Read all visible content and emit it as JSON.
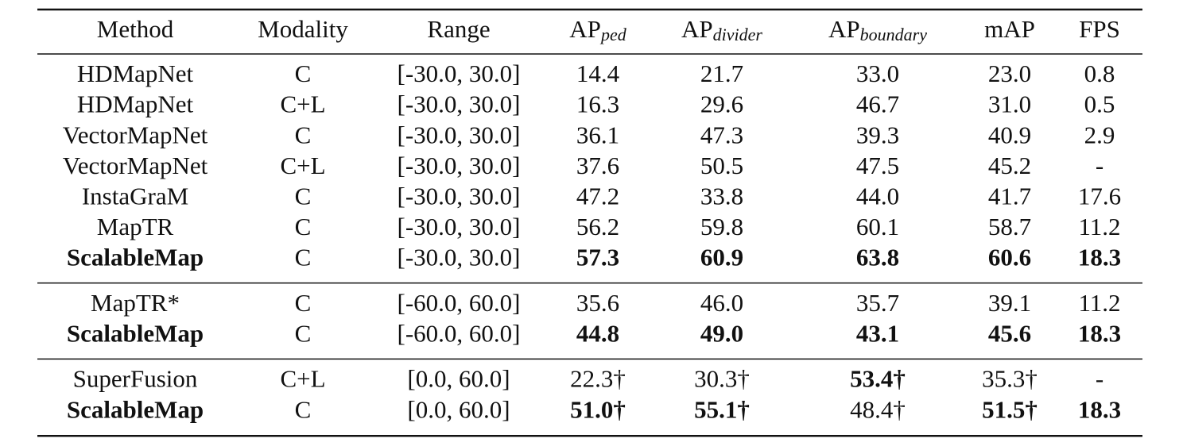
{
  "table": {
    "columns": [
      {
        "text": "Method"
      },
      {
        "text": "Modality"
      },
      {
        "text": "Range"
      },
      {
        "text": "AP",
        "sub": "ped"
      },
      {
        "text": "AP",
        "sub": "divider"
      },
      {
        "text": "AP",
        "sub": "boundary"
      },
      {
        "text": "mAP"
      },
      {
        "text": "FPS"
      }
    ],
    "groups": [
      [
        {
          "cells": [
            "HDMapNet",
            "C",
            "[-30.0, 30.0]",
            "14.4",
            "21.7",
            "33.0",
            "23.0",
            "0.8"
          ]
        },
        {
          "cells": [
            "HDMapNet",
            "C+L",
            "[-30.0, 30.0]",
            "16.3",
            "29.6",
            "46.7",
            "31.0",
            "0.5"
          ]
        },
        {
          "cells": [
            "VectorMapNet",
            "C",
            "[-30.0, 30.0]",
            "36.1",
            "47.3",
            "39.3",
            "40.9",
            "2.9"
          ]
        },
        {
          "cells": [
            "VectorMapNet",
            "C+L",
            "[-30.0, 30.0]",
            "37.6",
            "50.5",
            "47.5",
            "45.2",
            "-"
          ]
        },
        {
          "cells": [
            "InstaGraM",
            "C",
            "[-30.0, 30.0]",
            "47.2",
            "33.8",
            "44.0",
            "41.7",
            "17.6"
          ]
        },
        {
          "cells": [
            "MapTR",
            "C",
            "[-30.0, 30.0]",
            "56.2",
            "59.8",
            "60.1",
            "58.7",
            "11.2"
          ]
        },
        {
          "cells": [
            "ScalableMap",
            "C",
            "[-30.0, 30.0]",
            "57.3",
            "60.9",
            "63.8",
            "60.6",
            "18.3"
          ],
          "bold": [
            0,
            3,
            4,
            5,
            6,
            7
          ]
        }
      ],
      [
        {
          "cells": [
            "MapTR*",
            "C",
            "[-60.0, 60.0]",
            "35.6",
            "46.0",
            "35.7",
            "39.1",
            "11.2"
          ]
        },
        {
          "cells": [
            "ScalableMap",
            "C",
            "[-60.0, 60.0]",
            "44.8",
            "49.0",
            "43.1",
            "45.6",
            "18.3"
          ],
          "bold": [
            0,
            3,
            4,
            5,
            6,
            7
          ]
        }
      ],
      [
        {
          "cells": [
            "SuperFusion",
            "C+L",
            "[0.0, 60.0]",
            "22.3†",
            "30.3†",
            "53.4†",
            "35.3†",
            "-"
          ],
          "bold": [
            5
          ]
        },
        {
          "cells": [
            "ScalableMap",
            "C",
            "[0.0, 60.0]",
            "51.0†",
            "55.1†",
            "48.4†",
            "51.5†",
            "18.3"
          ],
          "bold": [
            0,
            3,
            4,
            6,
            7
          ]
        }
      ]
    ]
  }
}
